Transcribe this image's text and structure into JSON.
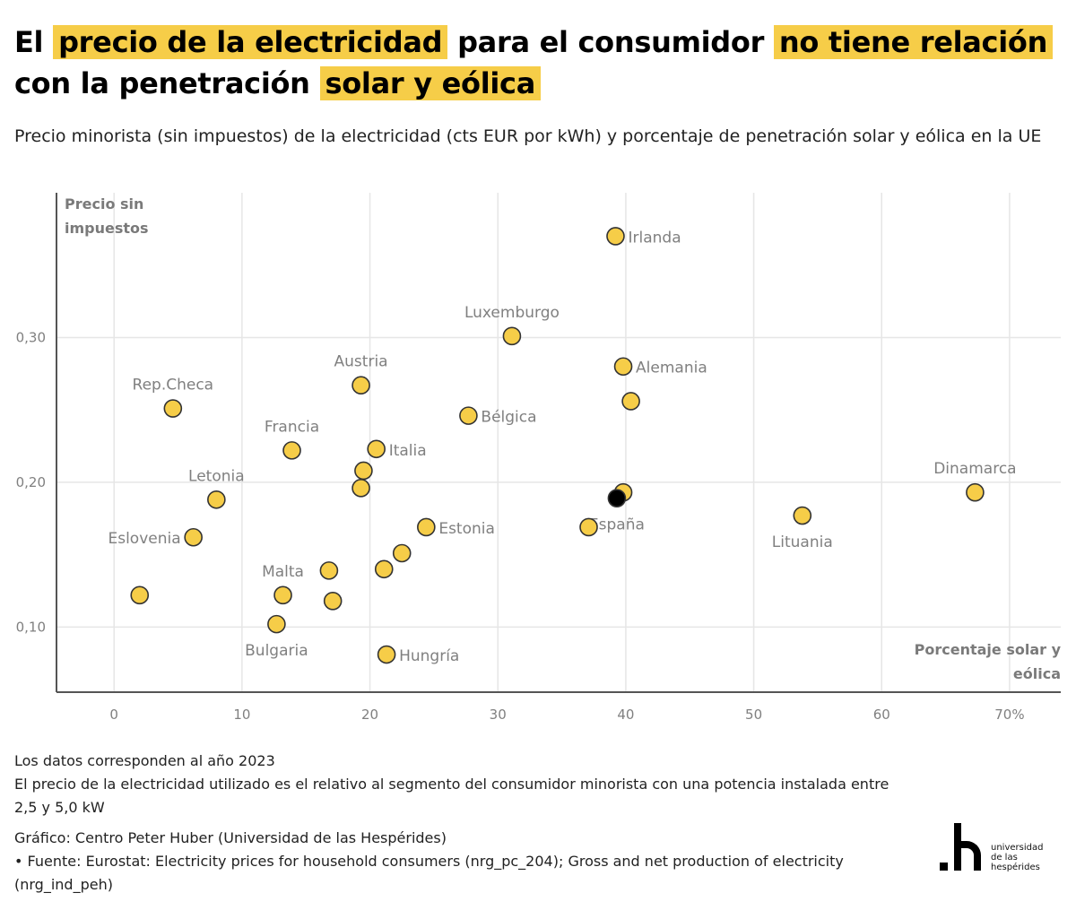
{
  "header": {
    "title_parts": [
      {
        "text": "El ",
        "highlight": false
      },
      {
        "text": "precio de la electricidad",
        "highlight": true
      },
      {
        "text": " para el consumidor ",
        "highlight": false
      },
      {
        "text": "no tiene relación",
        "highlight": true
      },
      {
        "text": " con la penetración ",
        "highlight": false
      },
      {
        "text": "solar y eólica",
        "highlight": true
      }
    ],
    "subtitle": "Precio minorista (sin impuestos) de la electricidad (cts EUR por kWh) y porcentaje de penetración solar y eólica en la UE"
  },
  "colors": {
    "highlight": "#f6cd48",
    "point_fill": "#f6cd48",
    "point_stroke": "#333333",
    "highlight_point": "#000000",
    "grid": "#e6e6e6",
    "axis": "#555555",
    "label": "#808080"
  },
  "chart_data": {
    "type": "scatter",
    "title": "El precio de la electricidad para el consumidor no tiene relación con la penetración solar y eólica",
    "xlabel": "Porcentaje solar y eólica",
    "ylabel": "Precio sin impuestos",
    "xlim": [
      -4.5,
      74
    ],
    "ylim": [
      0.055,
      0.4
    ],
    "x_ticks": [
      0,
      10,
      20,
      30,
      40,
      50,
      60,
      70
    ],
    "x_tick_labels": [
      "0",
      "10",
      "20",
      "30",
      "40",
      "50",
      "60",
      "70%"
    ],
    "y_ticks": [
      0.1,
      0.2,
      0.3
    ],
    "y_tick_labels": [
      "0,10",
      "0,20",
      "0,30"
    ],
    "grid": true,
    "legend": "none",
    "points": [
      {
        "label": "Irlanda",
        "x": 39.2,
        "y": 0.37,
        "label_pos": "right"
      },
      {
        "label": "Luxemburgo",
        "x": 31.1,
        "y": 0.301,
        "label_pos": "top"
      },
      {
        "label": "Alemania",
        "x": 39.8,
        "y": 0.28,
        "label_pos": "right"
      },
      {
        "label": "",
        "x": 40.4,
        "y": 0.256,
        "label_pos": "none"
      },
      {
        "label": "Bélgica",
        "x": 27.7,
        "y": 0.246,
        "label_pos": "right"
      },
      {
        "label": "Austria",
        "x": 19.3,
        "y": 0.267,
        "label_pos": "top"
      },
      {
        "label": "Rep.Checa",
        "x": 4.6,
        "y": 0.251,
        "label_pos": "top"
      },
      {
        "label": "Francia",
        "x": 13.9,
        "y": 0.222,
        "label_pos": "top"
      },
      {
        "label": "Italia",
        "x": 20.5,
        "y": 0.223,
        "label_pos": "right"
      },
      {
        "label": "",
        "x": 19.5,
        "y": 0.208,
        "label_pos": "none"
      },
      {
        "label": "",
        "x": 19.3,
        "y": 0.196,
        "label_pos": "none"
      },
      {
        "label": "Letonia",
        "x": 8.0,
        "y": 0.188,
        "label_pos": "top"
      },
      {
        "label": "Eslovenia",
        "x": 6.2,
        "y": 0.162,
        "label_pos": "left"
      },
      {
        "label": "Estonia",
        "x": 24.4,
        "y": 0.169,
        "label_pos": "right"
      },
      {
        "label": "",
        "x": 22.5,
        "y": 0.151,
        "label_pos": "none"
      },
      {
        "label": "",
        "x": 21.1,
        "y": 0.14,
        "label_pos": "none"
      },
      {
        "label": "",
        "x": 16.8,
        "y": 0.139,
        "label_pos": "none"
      },
      {
        "label": "Malta",
        "x": 13.2,
        "y": 0.122,
        "label_pos": "top"
      },
      {
        "label": "",
        "x": 17.1,
        "y": 0.118,
        "label_pos": "none"
      },
      {
        "label": "",
        "x": 2.0,
        "y": 0.122,
        "label_pos": "none"
      },
      {
        "label": "Bulgaria",
        "x": 12.7,
        "y": 0.102,
        "label_pos": "bottom"
      },
      {
        "label": "Hungría",
        "x": 21.3,
        "y": 0.081,
        "label_pos": "right"
      },
      {
        "label": "",
        "x": 37.1,
        "y": 0.169,
        "label_pos": "none"
      },
      {
        "label": "",
        "x": 39.8,
        "y": 0.193,
        "label_pos": "none"
      },
      {
        "label": "Lituania",
        "x": 53.8,
        "y": 0.177,
        "label_pos": "bottom"
      },
      {
        "label": "Dinamarca",
        "x": 67.3,
        "y": 0.193,
        "label_pos": "top"
      },
      {
        "label": "España",
        "x": 39.3,
        "y": 0.189,
        "label_pos": "bottom",
        "highlight": true
      }
    ]
  },
  "footer": {
    "notes": [
      "Los datos corresponden al año 2023",
      "El precio de la electricidad utilizado es el relativo al segmento del consumidor minorista con una potencia instalada entre 2,5 y 5,0 kW"
    ],
    "credit": "Gráfico: Centro Peter Huber (Universidad de las Hespérides)",
    "source": " • Fuente: Eurostat: Electricity prices for household consumers (nrg_pc_204); Gross and net production of electricity (nrg_ind_peh)"
  },
  "logo": {
    "mark": ".h",
    "lines": [
      "universidad",
      "de las",
      "hespérides"
    ]
  }
}
